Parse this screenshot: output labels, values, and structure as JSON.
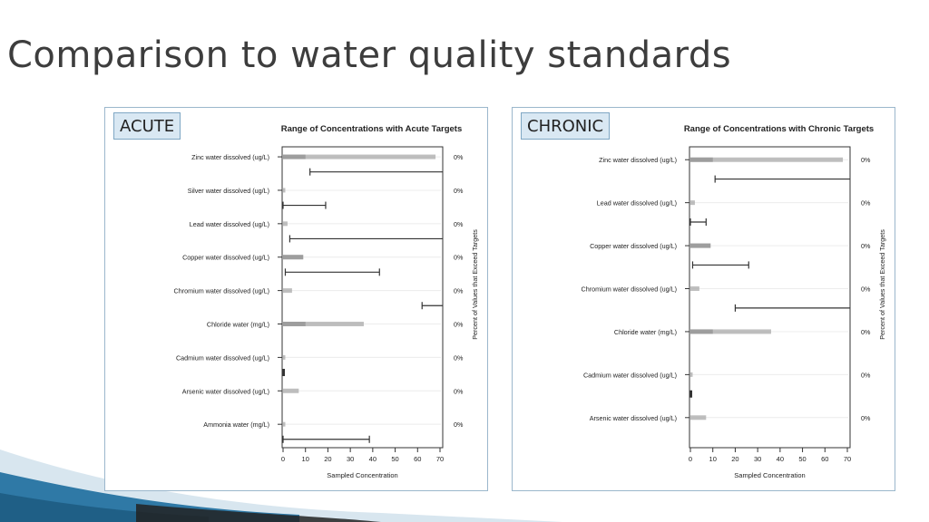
{
  "slide": {
    "title": "Comparison to water quality standards"
  },
  "colors": {
    "title": "#3d3d3d",
    "tag_bg": "#d9e8f3",
    "tag_border": "#7fa7c4",
    "panel_border": "#9bb7cc",
    "range_bar": "#aaaaaa",
    "target_line": "#333333",
    "deco_dark": "#1f5f86",
    "deco_light": "#8fb8d2"
  },
  "chart_data": [
    {
      "type": "range",
      "tag": "ACUTE",
      "title": "Range of Concentrations with Acute Targets",
      "xlabel": "Sampled Concentration",
      "ylabel_right": "Percent of Values that Exceed Targets",
      "xlim": [
        0,
        70
      ],
      "xticks": [
        "0",
        "10",
        "20",
        "30",
        "40",
        "50",
        "60",
        "70"
      ],
      "rows": [
        {
          "label": "Zinc water dissolved (ug/L)",
          "range": [
            0,
            68
          ],
          "target": [
            12,
            70
          ],
          "open_right": true,
          "percent": "0%"
        },
        {
          "label": "Silver water dissolved (ug/L)",
          "range": [
            0,
            1
          ],
          "target": [
            0,
            19
          ],
          "open_right": false,
          "percent": "0%"
        },
        {
          "label": "Lead water dissolved (ug/L)",
          "range": [
            0,
            2
          ],
          "target": [
            3,
            70
          ],
          "open_right": true,
          "percent": "0%"
        },
        {
          "label": "Copper water dissolved (ug/L)",
          "range": [
            0,
            9
          ],
          "target": [
            1,
            43
          ],
          "open_right": false,
          "percent": "0%"
        },
        {
          "label": "Chromium water dissolved (ug/L)",
          "range": [
            0,
            4
          ],
          "target": [
            62,
            70
          ],
          "open_right": true,
          "percent": "0%"
        },
        {
          "label": "Chloride water  (mg/L)",
          "range": [
            0,
            36
          ],
          "target": null,
          "open_right": false,
          "percent": "0%"
        },
        {
          "label": "Cadmium water dissolved (ug/L)",
          "range": [
            0,
            1
          ],
          "target": [
            0,
            1
          ],
          "open_right": false,
          "percent": "0%"
        },
        {
          "label": "Arsenic water dissolved (ug/L)",
          "range": [
            0,
            7
          ],
          "target": null,
          "open_right": false,
          "percent": "0%"
        },
        {
          "label": "Ammonia water  (mg/L)",
          "range": [
            0,
            1
          ],
          "target": [
            0,
            38.5
          ],
          "open_right": false,
          "percent": "0%"
        }
      ]
    },
    {
      "type": "range",
      "tag": "CHRONIC",
      "title": "Range of Concentrations with Chronic Targets",
      "xlabel": "Sampled Concentration",
      "ylabel_right": "Percent of Values that Exceed Targets",
      "xlim": [
        0,
        70
      ],
      "xticks": [
        "0",
        "10",
        "20",
        "30",
        "40",
        "50",
        "60",
        "70"
      ],
      "rows": [
        {
          "label": "Zinc water dissolved (ug/L)",
          "range": [
            0,
            68
          ],
          "target": [
            11,
            70
          ],
          "open_right": true,
          "percent": "0%"
        },
        {
          "label": "Lead water dissolved (ug/L)",
          "range": [
            0,
            2
          ],
          "target": [
            0,
            7
          ],
          "open_right": false,
          "percent": "0%"
        },
        {
          "label": "Copper water dissolved (ug/L)",
          "range": [
            0,
            9
          ],
          "target": [
            1,
            26
          ],
          "open_right": false,
          "percent": "0%"
        },
        {
          "label": "Chromium water dissolved (ug/L)",
          "range": [
            0,
            4
          ],
          "target": [
            20,
            70
          ],
          "open_right": true,
          "percent": "0%"
        },
        {
          "label": "Chloride water  (mg/L)",
          "range": [
            0,
            36
          ],
          "target": null,
          "open_right": false,
          "percent": "0%"
        },
        {
          "label": "Cadmium water dissolved (ug/L)",
          "range": [
            0,
            1
          ],
          "target": [
            0,
            1
          ],
          "open_right": false,
          "percent": "0%"
        },
        {
          "label": "Arsenic water dissolved (ug/L)",
          "range": [
            0,
            7
          ],
          "target": null,
          "open_right": false,
          "percent": "0%"
        }
      ]
    }
  ]
}
